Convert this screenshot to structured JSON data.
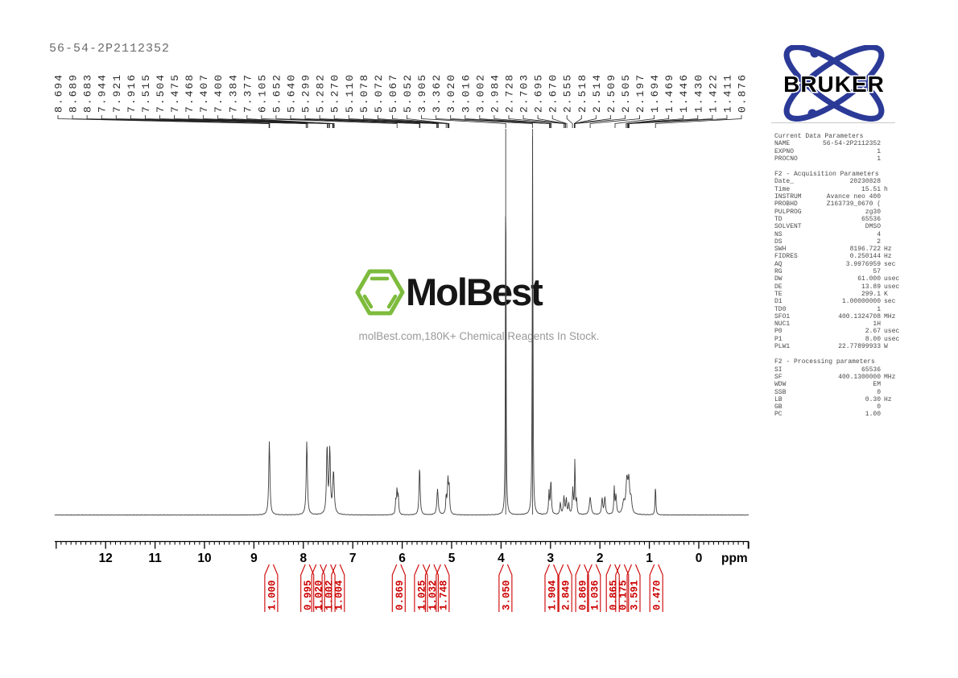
{
  "title": "56-54-2P2112352",
  "branding": {
    "bruker": "BRUKER",
    "watermark_name": "MolBest",
    "watermark_tagline": "molBest.com,180K+ Chemical Reagents In Stock."
  },
  "colors": {
    "integral_red": "#cc0000",
    "curve": "#3d3d3d",
    "bruker_blue": "#2b3a97",
    "molbest_green": "#7dbb3c"
  },
  "parameters": {
    "sections": [
      {
        "header": "Current Data Parameters",
        "rows": [
          [
            "NAME",
            "56-54-2P2112352",
            ""
          ],
          [
            "EXPNO",
            "1",
            ""
          ],
          [
            "PROCNO",
            "1",
            ""
          ]
        ]
      },
      {
        "header": "F2 - Acquisition Parameters",
        "rows": [
          [
            "Date_",
            "20230828",
            ""
          ],
          [
            "Time",
            "15.51",
            "h"
          ],
          [
            "INSTRUM",
            "Avance neo 400",
            ""
          ],
          [
            "PROBHD",
            "Z163739_0670 (",
            ""
          ],
          [
            "PULPROG",
            "zg30",
            ""
          ],
          [
            "TD",
            "65536",
            ""
          ],
          [
            "SOLVENT",
            "DMSO",
            ""
          ],
          [
            "NS",
            "4",
            ""
          ],
          [
            "DS",
            "2",
            ""
          ],
          [
            "SWH",
            "8196.722",
            "Hz"
          ],
          [
            "FIDRES",
            "0.250144",
            "Hz"
          ],
          [
            "AQ",
            "3.9976959",
            "sec"
          ],
          [
            "RG",
            "57",
            ""
          ],
          [
            "DW",
            "61.000",
            "usec"
          ],
          [
            "DE",
            "13.89",
            "usec"
          ],
          [
            "TE",
            "299.1",
            "K"
          ],
          [
            "D1",
            "1.00000000",
            "sec"
          ],
          [
            "TD0",
            "1",
            ""
          ],
          [
            "SFO1",
            "400.1324708",
            "MHz"
          ],
          [
            "NUC1",
            "1H",
            ""
          ],
          [
            "P0",
            "2.67",
            "usec"
          ],
          [
            "P1",
            "8.00",
            "usec"
          ],
          [
            "PLW1",
            "22.77899933",
            "W"
          ]
        ]
      },
      {
        "header": "F2 - Processing parameters",
        "rows": [
          [
            "SI",
            "65536",
            ""
          ],
          [
            "SF",
            "400.1300000",
            "MHz"
          ],
          [
            "WDW",
            "EM",
            ""
          ],
          [
            "SSB",
            "0",
            ""
          ],
          [
            "LB",
            "0.30",
            "Hz"
          ],
          [
            "GB",
            "0",
            ""
          ],
          [
            "PC",
            "1.00",
            ""
          ]
        ]
      }
    ]
  },
  "chart_data": {
    "type": "line",
    "description": "1H NMR spectrum, intensity vs chemical shift",
    "x_axis": {
      "unit_label": "ppm",
      "tick_labels": [
        "12",
        "11",
        "10",
        "9",
        "8",
        "7",
        "6",
        "5",
        "4",
        "3",
        "2",
        "1",
        "0"
      ],
      "range_ppm": [
        13.0,
        -1.0
      ],
      "direction": "reversed"
    },
    "peak_labels_ppm": [
      "8.694",
      "8.689",
      "8.683",
      "7.944",
      "7.921",
      "7.916",
      "7.515",
      "7.504",
      "7.475",
      "7.468",
      "7.407",
      "7.400",
      "7.384",
      "7.377",
      "6.105",
      "5.652",
      "5.640",
      "5.299",
      "5.282",
      "5.270",
      "5.110",
      "5.078",
      "5.072",
      "5.067",
      "5.052",
      "3.905",
      "3.362",
      "3.020",
      "3.016",
      "3.002",
      "2.984",
      "2.728",
      "2.703",
      "2.695",
      "2.670",
      "2.555",
      "2.518",
      "2.514",
      "2.509",
      "2.505",
      "2.197",
      "1.694",
      "1.469",
      "1.446",
      "1.430",
      "1.422",
      "1.411",
      "0.876"
    ],
    "integrals": [
      {
        "value": "1.000",
        "ppm": 8.65
      },
      {
        "value": "0.995",
        "ppm": 7.92
      },
      {
        "value": "1.020",
        "ppm": 7.7
      },
      {
        "value": "1.002",
        "ppm": 7.49
      },
      {
        "value": "1.004",
        "ppm": 7.3
      },
      {
        "value": "0.869",
        "ppm": 6.07
      },
      {
        "value": "1.025",
        "ppm": 5.62
      },
      {
        "value": "1.032",
        "ppm": 5.4
      },
      {
        "value": "1.748",
        "ppm": 5.18
      },
      {
        "value": "3.050",
        "ppm": 3.91
      },
      {
        "value": "1.904",
        "ppm": 2.98
      },
      {
        "value": "2.849",
        "ppm": 2.7
      },
      {
        "value": "0.869",
        "ppm": 2.36
      },
      {
        "value": "1.036",
        "ppm": 2.12
      },
      {
        "value": "0.865",
        "ppm": 1.74
      },
      {
        "value": "0.175",
        "ppm": 1.55
      },
      {
        "value": "3.591",
        "ppm": 1.32
      },
      {
        "value": "0.470",
        "ppm": 0.86
      }
    ],
    "peaks": [
      [
        8.688,
        92,
        0.014
      ],
      [
        7.93,
        92,
        0.014
      ],
      [
        7.52,
        84,
        0.014
      ],
      [
        7.465,
        80,
        0.014
      ],
      [
        7.39,
        52,
        0.018
      ],
      [
        6.13,
        16,
        0.01
      ],
      [
        6.105,
        30,
        0.011
      ],
      [
        6.08,
        23,
        0.01
      ],
      [
        5.648,
        60,
        0.013
      ],
      [
        5.285,
        32,
        0.016
      ],
      [
        5.11,
        22,
        0.01
      ],
      [
        5.075,
        42,
        0.013
      ],
      [
        5.05,
        32,
        0.011
      ],
      [
        3.905,
        480,
        0.007
      ],
      [
        3.362,
        480,
        0.008
      ],
      [
        3.03,
        28,
        0.01
      ],
      [
        2.992,
        42,
        0.012
      ],
      [
        2.8,
        15,
        0.012
      ],
      [
        2.728,
        22,
        0.013
      ],
      [
        2.68,
        19,
        0.013
      ],
      [
        2.63,
        13,
        0.011
      ],
      [
        2.548,
        32,
        0.012
      ],
      [
        2.506,
        70,
        0.008
      ],
      [
        2.472,
        18,
        0.01
      ],
      [
        2.197,
        22,
        0.02
      ],
      [
        1.955,
        20,
        0.014
      ],
      [
        1.9,
        22,
        0.014
      ],
      [
        1.71,
        33,
        0.01
      ],
      [
        1.675,
        24,
        0.012
      ],
      [
        1.52,
        14,
        0.025
      ],
      [
        1.455,
        40,
        0.022
      ],
      [
        1.415,
        38,
        0.02
      ],
      [
        1.37,
        17,
        0.018
      ],
      [
        0.876,
        37,
        0.009
      ]
    ]
  }
}
